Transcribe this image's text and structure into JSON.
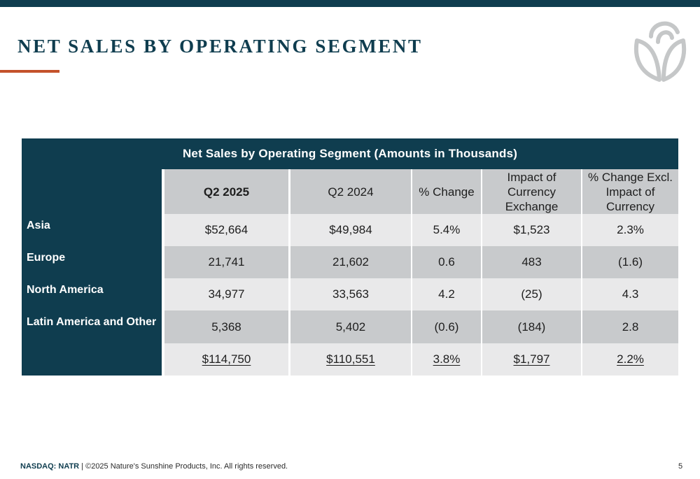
{
  "header": {
    "title": "NET SALES BY OPERATING SEGMENT",
    "colors": {
      "brand_navy": "#0f3d4f",
      "accent_orange": "#c4522b",
      "logo_gray": "#c5c7c8"
    },
    "logo_icon": "leaf-sprout-logo"
  },
  "table": {
    "caption": "Net Sales by Operating Segment (Amounts in Thousands)",
    "columns": [
      "Q2 2025",
      "Q2 2024",
      "% Change",
      "Impact of Currency Exchange",
      "% Change Excl. Impact of Currency"
    ],
    "rows": [
      {
        "label": "Asia",
        "values": [
          "$52,664",
          "$49,984",
          "5.4%",
          "$1,523",
          "2.3%"
        ]
      },
      {
        "label": "Europe",
        "values": [
          "21,741",
          "21,602",
          "0.6",
          "483",
          "(1.6)"
        ]
      },
      {
        "label": "North America",
        "values": [
          "34,977",
          "33,563",
          "4.2",
          "(25)",
          "4.3"
        ]
      },
      {
        "label": "Latin America and Other",
        "values": [
          "5,368",
          "5,402",
          "(0.6)",
          "(184)",
          "2.8"
        ]
      }
    ],
    "total": {
      "values": [
        "$114,750",
        "$110,551",
        "3.8%",
        "$1,797",
        "2.2%"
      ]
    }
  },
  "footer": {
    "ticker": "NASDAQ: NATR",
    "copyright": " | ©2025 Nature's Sunshine Products, Inc. All rights reserved.",
    "page_number": "5"
  }
}
